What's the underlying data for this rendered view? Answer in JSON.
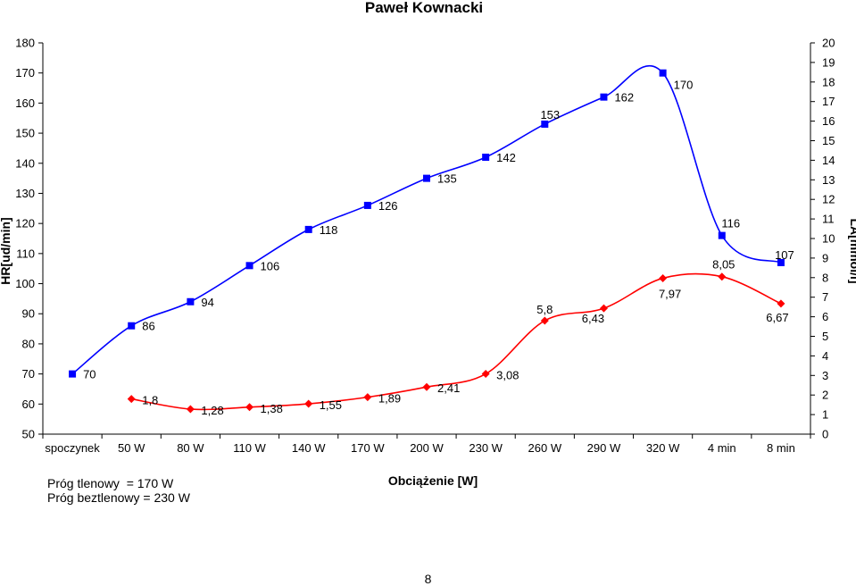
{
  "chart_data": {
    "type": "line",
    "title": "Paweł Kownacki",
    "xlabel": "Obciążenie [W]",
    "ylabel": "HR[ud/min]",
    "y2label": "LA[mmol/l]",
    "categories": [
      "spoczynek",
      "50 W",
      "80 W",
      "110 W",
      "140 W",
      "170 W",
      "200 W",
      "230 W",
      "260 W",
      "290 W",
      "320 W",
      "4 min",
      "8 min"
    ],
    "ylim": [
      50,
      180
    ],
    "yticks": [
      "50",
      "60",
      "70",
      "80",
      "90",
      "100",
      "110",
      "120",
      "130",
      "140",
      "150",
      "160",
      "170",
      "180"
    ],
    "y2lim": [
      0,
      20
    ],
    "y2ticks": [
      "0",
      "1",
      "2",
      "3",
      "4",
      "5",
      "6",
      "7",
      "8",
      "9",
      "10",
      "11",
      "12",
      "13",
      "14",
      "15",
      "16",
      "17",
      "18",
      "19",
      "20"
    ],
    "grid": false,
    "series": [
      {
        "axis": "left",
        "color": "#0000ff",
        "marker": "square",
        "values": [
          70,
          86,
          94,
          106,
          118,
          126,
          135,
          142,
          153,
          162,
          170,
          116,
          107
        ],
        "labels": [
          "70",
          "86",
          "94",
          "106",
          "118",
          "126",
          "135",
          "142",
          "153",
          "162",
          "170",
          "116",
          "107"
        ]
      },
      {
        "axis": "right",
        "color": "#ff0000",
        "marker": "diamond",
        "values": [
          null,
          1.8,
          1.28,
          1.38,
          1.55,
          1.89,
          2.41,
          3.08,
          5.8,
          6.43,
          7.97,
          8.05,
          6.67
        ],
        "labels": [
          null,
          "1,8",
          "1,28",
          "1,38",
          "1,55",
          "1,89",
          "2,41",
          "3,08",
          "5,8",
          "6,43",
          "7,97",
          "8,05",
          "6,67"
        ]
      }
    ]
  },
  "notes": {
    "line1": "Próg tlenowy  = 170 W",
    "line2": "Próg beztlenowy = 230 W"
  },
  "page_number": "8"
}
